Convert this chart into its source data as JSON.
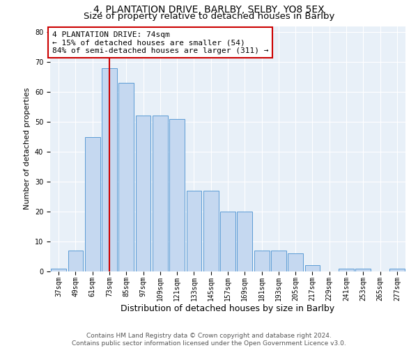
{
  "title": "4, PLANTATION DRIVE, BARLBY, SELBY, YO8 5EX",
  "subtitle": "Size of property relative to detached houses in Barlby",
  "xlabel": "Distribution of detached houses by size in Barlby",
  "ylabel": "Number of detached properties",
  "categories": [
    "37sqm",
    "49sqm",
    "61sqm",
    "73sqm",
    "85sqm",
    "97sqm",
    "109sqm",
    "121sqm",
    "133sqm",
    "145sqm",
    "157sqm",
    "169sqm",
    "181sqm",
    "193sqm",
    "205sqm",
    "217sqm",
    "229sqm",
    "241sqm",
    "253sqm",
    "265sqm",
    "277sqm"
  ],
  "values": [
    1,
    7,
    45,
    68,
    63,
    52,
    52,
    51,
    27,
    27,
    20,
    20,
    7,
    7,
    6,
    2,
    0,
    1,
    1,
    0,
    1
  ],
  "bar_color": "#c5d8f0",
  "bar_edge_color": "#5b9bd5",
  "vline_x_index": 3,
  "vline_color": "#cc0000",
  "annotation_text": "4 PLANTATION DRIVE: 74sqm\n← 15% of detached houses are smaller (54)\n84% of semi-detached houses are larger (311) →",
  "annotation_box_color": "#ffffff",
  "annotation_box_edge": "#cc0000",
  "ylim": [
    0,
    82
  ],
  "yticks": [
    0,
    10,
    20,
    30,
    40,
    50,
    60,
    70,
    80
  ],
  "footer_line1": "Contains HM Land Registry data © Crown copyright and database right 2024.",
  "footer_line2": "Contains public sector information licensed under the Open Government Licence v3.0.",
  "bg_color": "#e8f0f8",
  "fig_bg_color": "#ffffff",
  "grid_color": "#ffffff",
  "title_fontsize": 10,
  "subtitle_fontsize": 9.5,
  "xlabel_fontsize": 9,
  "ylabel_fontsize": 8,
  "tick_fontsize": 7,
  "annotation_fontsize": 8,
  "footer_fontsize": 6.5
}
